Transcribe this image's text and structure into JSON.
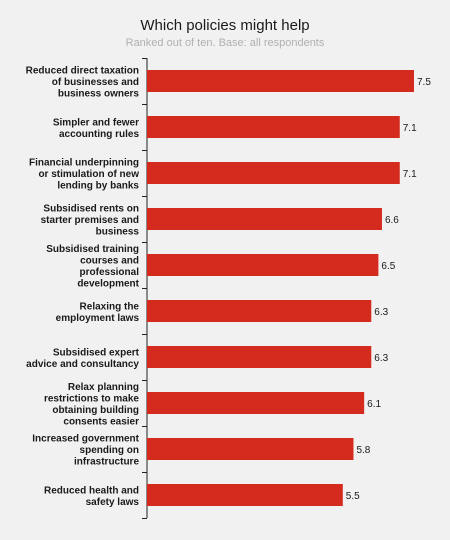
{
  "chart_data": {
    "type": "bar",
    "orientation": "horizontal",
    "title": "Which policies might help",
    "subtitle": "Ranked out of ten. Base: all respondents",
    "categories": [
      [
        "Reduced direct taxation",
        "of businesses and",
        "business owners"
      ],
      [
        "Simpler and fewer",
        "accounting rules"
      ],
      [
        "Financial underpinning",
        "or stimulation of new",
        "lending by banks"
      ],
      [
        "Subsidised rents on",
        "starter premises and",
        "business"
      ],
      [
        "Subsidised training",
        "courses and",
        "professional",
        "development"
      ],
      [
        "Relaxing the",
        "employment laws"
      ],
      [
        "Subsidised expert",
        "advice and consultancy"
      ],
      [
        "Relax planning",
        "restrictions to make",
        "obtaining building",
        "consents easier"
      ],
      [
        "Increased government",
        "spending on",
        "infrastructure"
      ],
      [
        "Reduced health and",
        "safety laws"
      ]
    ],
    "values": [
      7.5,
      7.1,
      7.1,
      6.6,
      6.5,
      6.3,
      6.3,
      6.1,
      5.8,
      5.5
    ],
    "value_labels": [
      "7.5",
      "7.1",
      "7.1",
      "6.6",
      "6.5",
      "6.3",
      "6.3",
      "6.1",
      "5.8",
      "5.5"
    ],
    "xlim": [
      0,
      7.5
    ],
    "bar_color": "#d52b1e",
    "grid": false,
    "legend": "none"
  }
}
